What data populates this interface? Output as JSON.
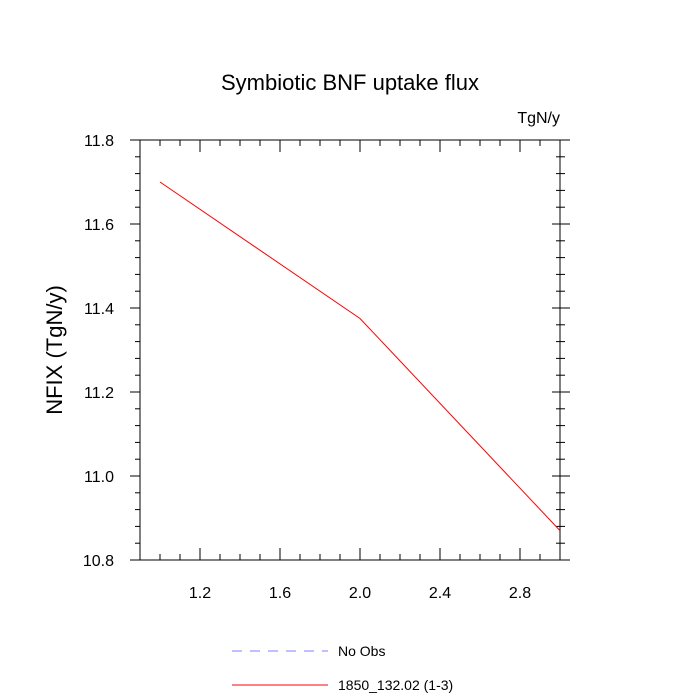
{
  "chart_data": {
    "type": "line",
    "title": "Symbiotic BNF uptake flux",
    "units": "TgN/y",
    "ylabel": "NFIX  (TgN/y)",
    "xlabel": "",
    "xlim": [
      0.9,
      3.0
    ],
    "ylim": [
      10.8,
      11.8
    ],
    "x_ticks": [
      "1.2",
      "1.6",
      "2.0",
      "2.4",
      "2.8"
    ],
    "y_ticks": [
      "10.8",
      "11.0",
      "11.2",
      "11.4",
      "11.6",
      "11.8"
    ],
    "grid": false,
    "legend_position": "bottom",
    "series": [
      {
        "name": "No Obs",
        "color": "#8080ff",
        "dashed": true,
        "x": [],
        "y": []
      },
      {
        "name": "1850_132.02 (1-3)",
        "color": "#ff0000",
        "dashed": false,
        "x": [
          1.0,
          2.0,
          3.0
        ],
        "y": [
          11.7,
          11.375,
          10.87
        ]
      }
    ]
  }
}
